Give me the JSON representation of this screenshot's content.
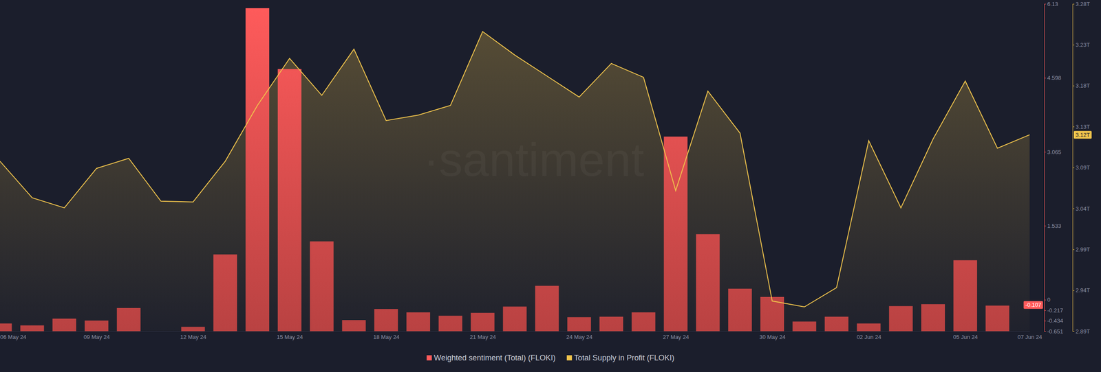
{
  "chart_data": {
    "type": "bar",
    "watermark": "·santiment",
    "categories": [
      "06 May 24",
      null,
      null,
      "09 May 24",
      null,
      null,
      "12 May 24",
      null,
      null,
      "15 May 24",
      null,
      null,
      "18 May 24",
      null,
      null,
      "21 May 24",
      null,
      null,
      "24 May 24",
      null,
      null,
      "27 May 24",
      null,
      null,
      "30 May 24",
      null,
      null,
      "02 Jun 24",
      null,
      null,
      "05 Jun 24",
      null,
      "07 Jun 24"
    ],
    "series": [
      {
        "name": "Weighted sentiment (Total) (FLOKI)",
        "type": "bar",
        "color": "#ff5b5b",
        "values": [
          -0.49,
          -0.53,
          -0.39,
          -0.43,
          -0.17,
          null,
          -0.56,
          0.94,
          6.04,
          4.78,
          1.21,
          -0.42,
          -0.19,
          -0.26,
          -0.33,
          -0.27,
          -0.14,
          0.29,
          -0.36,
          -0.35,
          -0.26,
          3.38,
          1.36,
          0.23,
          0.06,
          -0.45,
          -0.35,
          -0.49,
          -0.13,
          -0.09,
          0.82,
          -0.12,
          null
        ]
      },
      {
        "name": "Total Supply in Profit (FLOKI)",
        "type": "area",
        "color": "#f0c44c",
        "axis": "y2",
        "values": [
          3.0925,
          3.049,
          3.037,
          3.084,
          3.096,
          3.045,
          3.044,
          3.0925,
          3.159,
          3.215,
          3.171,
          3.226,
          3.141,
          3.1475,
          3.159,
          3.247,
          3.219,
          3.194,
          3.169,
          3.209,
          3.1925,
          3.0575,
          3.176,
          3.126,
          2.926,
          2.919,
          2.942,
          3.117,
          3.037,
          3.119,
          3.188,
          3.108,
          3.124
        ]
      }
    ],
    "ylim": [
      -0.651,
      6.13
    ],
    "yticks": [
      6.13,
      4.598,
      3.065,
      1.533,
      0,
      -0.217,
      -0.434,
      -0.651
    ],
    "y2lim": [
      2.89,
      3.28
    ],
    "y2ticks": [
      {
        "value": 3.28,
        "label": "3.28T"
      },
      {
        "value": 3.23125,
        "label": "3.23T"
      },
      {
        "value": 3.1825,
        "label": "3.18T"
      },
      {
        "value": 3.13375,
        "label": "3.13T"
      },
      {
        "value": 3.085,
        "label": "3.09T"
      },
      {
        "value": 3.03625,
        "label": "3.04T"
      },
      {
        "value": 2.9875,
        "label": "2.99T"
      },
      {
        "value": 2.93875,
        "label": "2.94T"
      },
      {
        "value": 2.89,
        "label": "2.89T"
      }
    ],
    "annotations": [
      {
        "text": "-0.107",
        "y": -0.107,
        "axis": "y"
      },
      {
        "text": "3.12T",
        "y": 3.124,
        "axis": "y2"
      }
    ],
    "legend": "bottom",
    "grid": false
  }
}
